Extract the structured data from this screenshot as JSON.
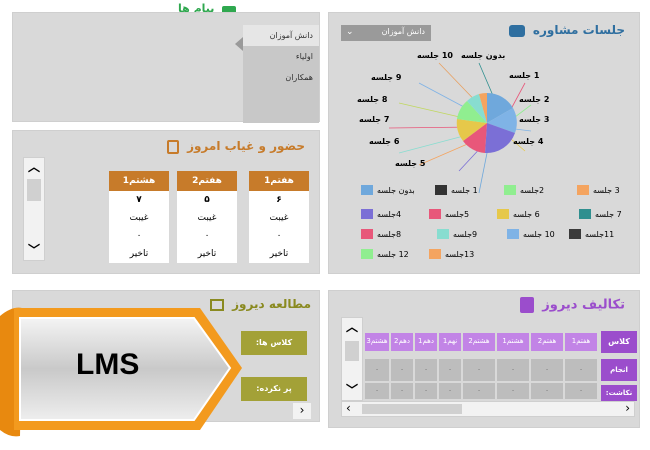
{
  "topbar": {
    "left_logo": "پیام ها",
    "right_title": "جلسات مشاوره"
  },
  "menu": {
    "items": [
      "دانش آموزان",
      "اولیاء",
      "همکاران"
    ]
  },
  "consult": {
    "title": "جلسات مشاوره",
    "select_value": "دانش آموزان",
    "pie_labels_left": [
      "بدون جلسه",
      "10 جلسه",
      "9 جلسه",
      "8 جلسه",
      "7 جلسه",
      "6 جلسه",
      "5 جلسه"
    ],
    "pie_labels_right": [
      "1 جلسه",
      "2 جلسه",
      "3 جلسه",
      "4 جلسه"
    ],
    "legend": [
      {
        "label": "3 جلسه",
        "color": "#f4a460"
      },
      {
        "label": "2جلسه",
        "color": "#90ee90"
      },
      {
        "label": "1 جلسه",
        "color": "#333333"
      },
      {
        "label": "بدون جلسه",
        "color": "#6fa8dc"
      },
      {
        "label": "7 جلسه",
        "color": "#2f8f8f"
      },
      {
        "label": "6 جلسه",
        "color": "#e6c84a"
      },
      {
        "label": "5جلسه",
        "color": "#e8577a"
      },
      {
        "label": "4جلسه",
        "color": "#7b6fd6"
      },
      {
        "label": "11جلسه",
        "color": "#3a3a3a"
      },
      {
        "label": "10 جلسه",
        "color": "#7fb3e6"
      },
      {
        "label": "9جلسه",
        "color": "#88ddd0"
      },
      {
        "label": "8جلسه",
        "color": "#e8577a"
      },
      {
        "label": "13جلسه",
        "color": "#f4a460"
      },
      {
        "label": "12 جلسه",
        "color": "#90ee90"
      }
    ]
  },
  "attendance": {
    "title": "حضور و غیاب امروز",
    "columns": [
      {
        "header": "هفتم1",
        "absent_num": "۶",
        "absent_label": "غیبت",
        "late_num": "۰",
        "late_label": "تاخیر"
      },
      {
        "header": "هفتم2",
        "absent_num": "۵",
        "absent_label": "غیبت",
        "late_num": "۰",
        "late_label": "تاخیر"
      },
      {
        "header": "هشتم1",
        "absent_num": "۷",
        "absent_label": "غیبت",
        "late_num": "۰",
        "late_label": "تاخیر"
      }
    ]
  },
  "study": {
    "title": "مطالعه دیروز",
    "class_label": "کلاس ها:",
    "filled_label": "پر نکرده:"
  },
  "homework": {
    "title": "تکالیف دیروز",
    "row_labels": [
      "کلاس ها:",
      "انجام نداده:",
      "نکاشت:"
    ],
    "columns": [
      "هفتم1",
      "هفتم2",
      "هشتم1",
      "هشتم2",
      "نهم1",
      "دهم1",
      "دهم2",
      "هشتم3"
    ],
    "cell_value": "۰"
  },
  "banner": {
    "text": "LMS"
  },
  "colors": {
    "orange": "#f39a1e",
    "brown": "#c77b2a",
    "olive": "#a3a137",
    "purple": "#9b4dcc",
    "teal": "#2f6fa0"
  }
}
